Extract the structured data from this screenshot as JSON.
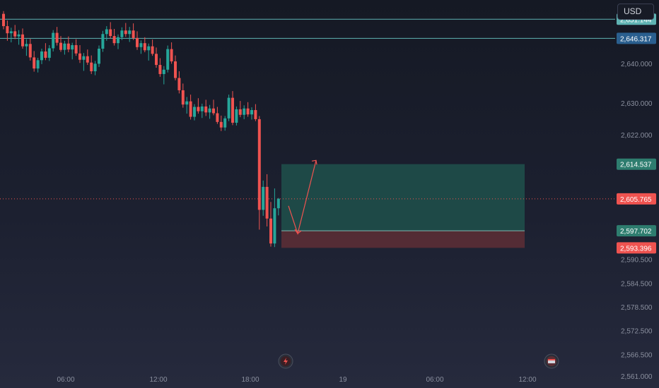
{
  "toolbar": {
    "currency_label": "USD"
  },
  "colors": {
    "up": "#26a69a",
    "down": "#ef5350",
    "axis_text": "#8a8f9e",
    "hline": "#5fb3b3",
    "hline_tag_2": "#2a5f8f",
    "current_price": "#ef5350",
    "target_zone": "#1f4e4a",
    "stop_zone": "#5a2e35"
  },
  "chart_data": {
    "type": "candlestick",
    "y_axis_ticks": [
      "2,640.000",
      "2,630.000",
      "2,622.000",
      "2,590.500",
      "2,584.500",
      "2,578.500",
      "2,572.500",
      "2,566.500",
      "2,561.000"
    ],
    "x_axis_ticks": [
      "06:00",
      "12:00",
      "18:00",
      "19",
      "06:00",
      "12:00"
    ],
    "ylim": [
      2558,
      2656
    ],
    "grid": false,
    "horizontal_levels": [
      {
        "label": "2,651.144",
        "value": 2651.144,
        "tag_color": "#5fb3b3"
      },
      {
        "label": "2,646.317",
        "value": 2646.317,
        "tag_color": "#2a5f8f"
      }
    ],
    "current_price": {
      "label": "2,605.765",
      "value": 2605.765
    },
    "position": {
      "type": "long",
      "target": {
        "label": "2,614.537",
        "value": 2614.537
      },
      "entry": {
        "label": "2,597.702",
        "value": 2597.702
      },
      "stop": {
        "label": "2,593.396",
        "value": 2593.396
      }
    },
    "candles": [
      [
        2652.5,
        2653.2,
        2648.6,
        2649.4
      ],
      [
        2649.4,
        2650.8,
        2645.7,
        2647.6
      ],
      [
        2647.6,
        2649.0,
        2645.3,
        2648.1
      ],
      [
        2648.1,
        2649.7,
        2646.1,
        2646.8
      ],
      [
        2646.8,
        2648.4,
        2644.7,
        2647.3
      ],
      [
        2647.3,
        2648.8,
        2643.7,
        2644.3
      ],
      [
        2644.3,
        2646.1,
        2641.9,
        2644.9
      ],
      [
        2644.9,
        2646.2,
        2640.7,
        2641.5
      ],
      [
        2641.5,
        2643.1,
        2637.9,
        2638.7
      ],
      [
        2638.7,
        2641.4,
        2637.7,
        2640.8
      ],
      [
        2640.8,
        2643.7,
        2639.8,
        2643.0
      ],
      [
        2643.0,
        2645.1,
        2640.8,
        2641.4
      ],
      [
        2641.4,
        2644.6,
        2640.6,
        2643.8
      ],
      [
        2643.8,
        2648.4,
        2643.0,
        2647.7
      ],
      [
        2647.7,
        2649.2,
        2644.5,
        2645.2
      ],
      [
        2645.2,
        2646.9,
        2642.9,
        2643.4
      ],
      [
        2643.4,
        2645.7,
        2642.2,
        2645.0
      ],
      [
        2645.0,
        2646.8,
        2642.8,
        2643.5
      ],
      [
        2643.5,
        2645.2,
        2641.0,
        2644.6
      ],
      [
        2644.6,
        2646.1,
        2641.9,
        2642.5
      ],
      [
        2642.5,
        2644.6,
        2640.1,
        2640.9
      ],
      [
        2640.9,
        2642.6,
        2638.1,
        2641.8
      ],
      [
        2641.8,
        2643.5,
        2639.6,
        2640.2
      ],
      [
        2640.2,
        2642.0,
        2637.3,
        2638.0
      ],
      [
        2638.0,
        2640.6,
        2637.0,
        2639.9
      ],
      [
        2639.9,
        2644.5,
        2639.1,
        2643.7
      ],
      [
        2643.7,
        2648.2,
        2642.9,
        2647.4
      ],
      [
        2647.4,
        2649.4,
        2645.7,
        2648.6
      ],
      [
        2648.6,
        2650.4,
        2646.3,
        2646.9
      ],
      [
        2646.9,
        2648.7,
        2644.5,
        2645.1
      ],
      [
        2645.1,
        2647.3,
        2643.6,
        2646.6
      ],
      [
        2646.6,
        2649.1,
        2645.9,
        2648.3
      ],
      [
        2648.3,
        2650.2,
        2646.7,
        2647.4
      ],
      [
        2647.4,
        2649.2,
        2645.4,
        2648.3
      ],
      [
        2648.3,
        2650.1,
        2645.9,
        2646.4
      ],
      [
        2646.4,
        2648.1,
        2643.4,
        2644.1
      ],
      [
        2644.1,
        2645.8,
        2642.4,
        2645.1
      ],
      [
        2645.1,
        2646.6,
        2642.8,
        2643.3
      ],
      [
        2643.3,
        2645.0,
        2640.7,
        2644.3
      ],
      [
        2644.3,
        2646.0,
        2641.9,
        2642.4
      ],
      [
        2642.4,
        2644.0,
        2638.9,
        2639.6
      ],
      [
        2639.6,
        2641.3,
        2636.6,
        2637.3
      ],
      [
        2637.3,
        2639.3,
        2634.7,
        2638.4
      ],
      [
        2638.4,
        2644.5,
        2637.7,
        2643.6
      ],
      [
        2643.6,
        2645.3,
        2639.9,
        2640.5
      ],
      [
        2640.5,
        2642.0,
        2635.7,
        2636.3
      ],
      [
        2636.3,
        2638.0,
        2632.4,
        2633.2
      ],
      [
        2633.2,
        2634.9,
        2628.8,
        2629.6
      ],
      [
        2629.6,
        2631.5,
        2627.3,
        2630.4
      ],
      [
        2630.4,
        2632.1,
        2625.8,
        2626.5
      ],
      [
        2626.5,
        2629.7,
        2625.6,
        2629.0
      ],
      [
        2629.0,
        2631.2,
        2627.3,
        2627.9
      ],
      [
        2627.9,
        2629.8,
        2626.2,
        2629.1
      ],
      [
        2629.1,
        2630.8,
        2626.7,
        2627.6
      ],
      [
        2627.6,
        2629.5,
        2626.0,
        2628.6
      ],
      [
        2628.6,
        2630.8,
        2626.9,
        2627.4
      ],
      [
        2627.4,
        2629.0,
        2624.7,
        2625.2
      ],
      [
        2625.2,
        2626.8,
        2622.9,
        2623.8
      ],
      [
        2623.8,
        2626.7,
        2623.0,
        2626.1
      ],
      [
        2626.1,
        2632.1,
        2625.4,
        2631.3
      ],
      [
        2631.3,
        2633.0,
        2624.4,
        2625.0
      ],
      [
        2625.0,
        2629.1,
        2624.3,
        2628.4
      ],
      [
        2628.4,
        2630.5,
        2626.4,
        2627.0
      ],
      [
        2627.0,
        2629.4,
        2625.9,
        2628.6
      ],
      [
        2628.6,
        2630.2,
        2626.5,
        2627.1
      ],
      [
        2627.1,
        2628.9,
        2625.8,
        2628.2
      ],
      [
        2628.2,
        2629.7,
        2625.4,
        2625.9
      ],
      [
        2625.9,
        2626.7,
        2598.0,
        2603.0
      ],
      [
        2603.0,
        2610.4,
        2601.5,
        2608.8
      ],
      [
        2608.8,
        2612.0,
        2598.8,
        2600.8
      ],
      [
        2600.8,
        2605.0,
        2593.7,
        2594.5
      ],
      [
        2594.5,
        2608.4,
        2593.6,
        2603.4
      ],
      [
        2603.4,
        2606.0,
        2601.6,
        2605.8
      ]
    ]
  }
}
